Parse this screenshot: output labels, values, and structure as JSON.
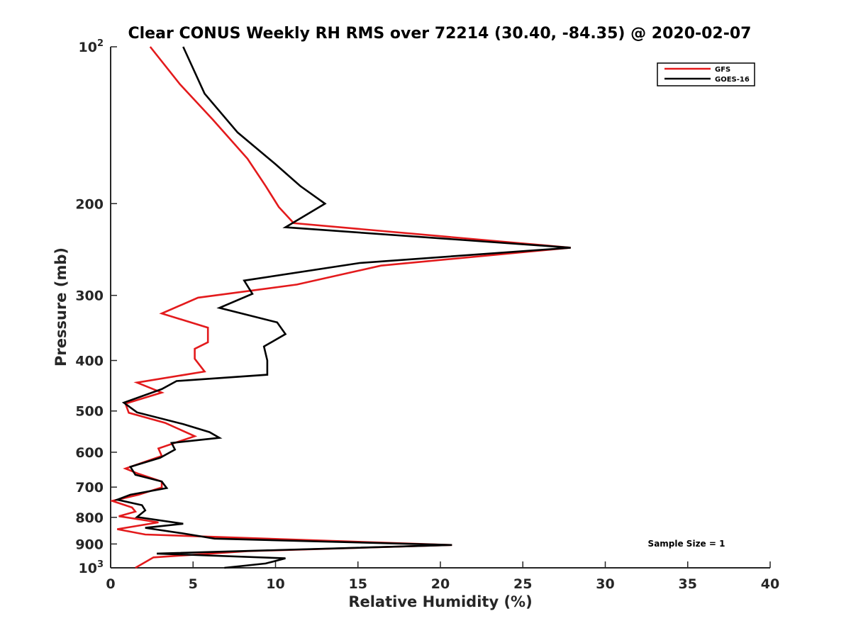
{
  "chart_data": {
    "type": "line",
    "title": "Clear CONUS Weekly RH RMS over 72214 (30.40, -84.35) @ 2020-02-07",
    "xlabel": "Relative Humidity (%)",
    "ylabel": "Pressure (mb)",
    "xlim": [
      0,
      40
    ],
    "ylim": [
      100,
      1000
    ],
    "y_scale": "log",
    "y_reversed": true,
    "grid": false,
    "legend_position": "top-right",
    "x_ticks": [
      "0",
      "5",
      "10",
      "15",
      "20",
      "25",
      "30",
      "35",
      "40"
    ],
    "y_ticks": [
      {
        "value": 100,
        "base": "10",
        "exp": "2"
      },
      {
        "value": 200,
        "label": "200"
      },
      {
        "value": 300,
        "label": "300"
      },
      {
        "value": 400,
        "label": "400"
      },
      {
        "value": 500,
        "label": "500"
      },
      {
        "value": 600,
        "label": "600"
      },
      {
        "value": 700,
        "label": "700"
      },
      {
        "value": 800,
        "label": "800"
      },
      {
        "value": 900,
        "label": "900"
      },
      {
        "value": 1000,
        "base": "10",
        "exp": "3"
      }
    ],
    "annotation": "Sample Size = 1",
    "series": [
      {
        "name": "GFS",
        "color": "#e31a1c",
        "points": [
          [
            2.4,
            100
          ],
          [
            4.2,
            118
          ],
          [
            6.2,
            138
          ],
          [
            8.3,
            164
          ],
          [
            9.4,
            185
          ],
          [
            10.2,
            203
          ],
          [
            11.1,
            218
          ],
          [
            27.9,
            243
          ],
          [
            16.4,
            263
          ],
          [
            11.3,
            286
          ],
          [
            5.3,
            303
          ],
          [
            3.1,
            325
          ],
          [
            5.9,
            346
          ],
          [
            5.9,
            369
          ],
          [
            5.1,
            380
          ],
          [
            5.1,
            397
          ],
          [
            5.7,
            420
          ],
          [
            1.6,
            441
          ],
          [
            3.1,
            461
          ],
          [
            0.9,
            484
          ],
          [
            1.1,
            504
          ],
          [
            3.3,
            527
          ],
          [
            5.1,
            559
          ],
          [
            2.9,
            590
          ],
          [
            3.1,
            610
          ],
          [
            0.9,
            645
          ],
          [
            1.7,
            660
          ],
          [
            3.1,
            683
          ],
          [
            3.1,
            701
          ],
          [
            1.7,
            724
          ],
          [
            0.1,
            744
          ],
          [
            1.3,
            766
          ],
          [
            1.5,
            780
          ],
          [
            0.5,
            796
          ],
          [
            2.9,
            818
          ],
          [
            0.4,
            843
          ],
          [
            2.1,
            863
          ],
          [
            20.7,
            904
          ],
          [
            8.3,
            929
          ],
          [
            2.6,
            955
          ],
          [
            1.5,
            1000
          ]
        ]
      },
      {
        "name": "GOES-16",
        "color": "#000000",
        "points": [
          [
            4.4,
            100
          ],
          [
            5.7,
            123
          ],
          [
            7.7,
            146
          ],
          [
            10.0,
            168
          ],
          [
            11.5,
            185
          ],
          [
            13.0,
            200
          ],
          [
            10.6,
            222
          ],
          [
            27.9,
            243
          ],
          [
            15.1,
            260
          ],
          [
            8.1,
            281
          ],
          [
            8.6,
            298
          ],
          [
            6.6,
            317
          ],
          [
            10.1,
            338
          ],
          [
            10.6,
            356
          ],
          [
            9.3,
            376
          ],
          [
            9.5,
            400
          ],
          [
            9.5,
            426
          ],
          [
            4.0,
            438
          ],
          [
            3.1,
            454
          ],
          [
            0.8,
            482
          ],
          [
            1.6,
            503
          ],
          [
            4.4,
            530
          ],
          [
            6.0,
            549
          ],
          [
            6.6,
            563
          ],
          [
            3.7,
            576
          ],
          [
            3.9,
            593
          ],
          [
            3.0,
            615
          ],
          [
            1.2,
            640
          ],
          [
            1.5,
            663
          ],
          [
            3.1,
            683
          ],
          [
            3.4,
            703
          ],
          [
            1.2,
            724
          ],
          [
            0.4,
            740
          ],
          [
            1.9,
            758
          ],
          [
            2.1,
            776
          ],
          [
            1.6,
            799
          ],
          [
            4.4,
            823
          ],
          [
            2.1,
            838
          ],
          [
            4.4,
            859
          ],
          [
            6.3,
            879
          ],
          [
            20.7,
            904
          ],
          [
            2.8,
            939
          ],
          [
            10.6,
            959
          ],
          [
            9.4,
            981
          ],
          [
            6.9,
            1000
          ]
        ]
      }
    ]
  }
}
